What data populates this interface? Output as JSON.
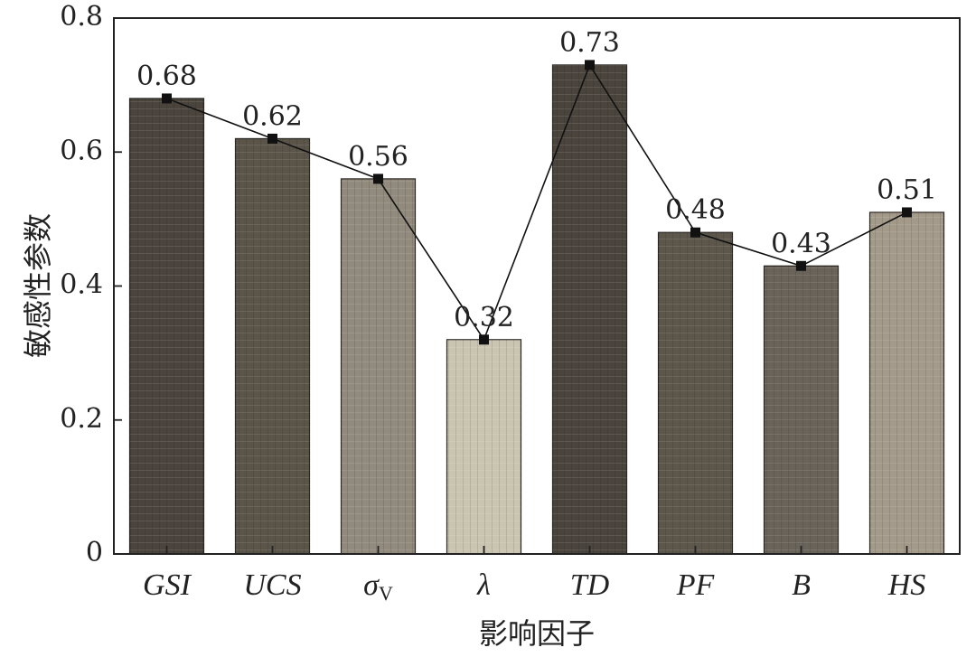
{
  "chart_data": {
    "type": "bar",
    "title": "",
    "xlabel": "影响因子",
    "ylabel": "敏感性参数",
    "categories": [
      "GSI",
      "UCS",
      "σ_V",
      "λ",
      "TD",
      "PF",
      "B",
      "HS"
    ],
    "category_display": [
      {
        "main": "GSI",
        "sub": ""
      },
      {
        "main": "UCS",
        "sub": ""
      },
      {
        "main": "σ",
        "sub": "V"
      },
      {
        "main": "λ",
        "sub": ""
      },
      {
        "main": "TD",
        "sub": ""
      },
      {
        "main": "PF",
        "sub": ""
      },
      {
        "main": "B",
        "sub": ""
      },
      {
        "main": "HS",
        "sub": ""
      }
    ],
    "series": [
      {
        "name": "敏感性参数 (bars)",
        "kind": "bar",
        "values": [
          0.68,
          0.62,
          0.56,
          0.32,
          0.73,
          0.48,
          0.43,
          0.51
        ]
      },
      {
        "name": "敏感性参数 (line)",
        "kind": "line-with-square-markers",
        "values": [
          0.68,
          0.62,
          0.56,
          0.32,
          0.73,
          0.48,
          0.43,
          0.51
        ]
      }
    ],
    "data_labels": [
      "0.68",
      "0.62",
      "0.56",
      "0.32",
      "0.73",
      "0.48",
      "0.43",
      "0.51"
    ],
    "ylim": [
      0,
      0.8
    ],
    "yticks": [
      0,
      0.2,
      0.4,
      0.6,
      0.8
    ],
    "ytick_labels": [
      "0",
      "0.2",
      "0.4",
      "0.6",
      "0.8"
    ],
    "grid": false,
    "legend": "none",
    "bar_colors": [
      "#4a443c",
      "#5a5449",
      "#918a7d",
      "#cbc4b0",
      "#4a443c",
      "#5c564b",
      "#69635a",
      "#a39a89"
    ],
    "line_color": "#111111",
    "marker_color": "#111111"
  }
}
